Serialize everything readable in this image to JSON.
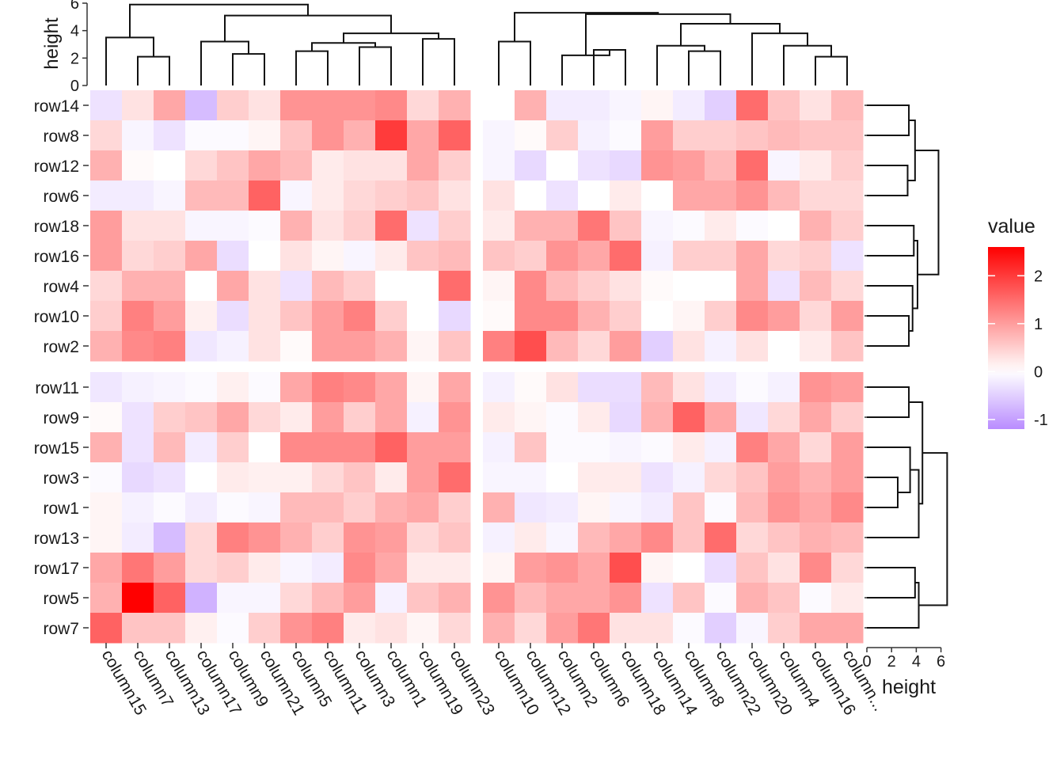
{
  "chart_data": {
    "type": "heatmap",
    "title": "",
    "value_range": [
      -1.2,
      2.6
    ],
    "colors": {
      "low": "#B98CFF",
      "mid": "#FFFFFF",
      "high": "#FF0000"
    },
    "row_groups": [
      [
        "row14",
        "row8",
        "row12",
        "row6",
        "row18",
        "row16",
        "row4",
        "row10",
        "row2"
      ],
      [
        "row11",
        "row9",
        "row15",
        "row3",
        "row1",
        "row13",
        "row17",
        "row5",
        "row7"
      ]
    ],
    "column_groups": [
      [
        "column15",
        "column7",
        "column13",
        "column17",
        "column9",
        "column21",
        "column5",
        "column11",
        "column3",
        "column1",
        "column19",
        "column23"
      ],
      [
        "column10",
        "column12",
        "column2",
        "column6",
        "column18",
        "column14",
        "column8",
        "column22",
        "column20",
        "column4",
        "column16",
        "column..."
      ]
    ],
    "values": {
      "row14": [
        -0.3,
        0.3,
        0.9,
        -0.7,
        0.5,
        0.3,
        1.1,
        1.1,
        1.1,
        1.2,
        0.4,
        0.8,
        0.0,
        0.8,
        -0.2,
        -0.2,
        -0.1,
        0.1,
        -0.2,
        -0.5,
        1.5,
        0.6,
        0.3,
        0.7
      ],
      "row8": [
        0.4,
        -0.1,
        -0.3,
        -0.05,
        -0.05,
        0.1,
        0.6,
        1.1,
        0.8,
        2.0,
        0.9,
        1.6,
        -0.1,
        0.05,
        0.5,
        -0.15,
        -0.05,
        1.0,
        0.5,
        0.5,
        0.6,
        0.7,
        0.6,
        0.6
      ],
      "row12": [
        0.8,
        0.05,
        0.0,
        0.4,
        0.6,
        0.9,
        0.7,
        0.2,
        0.3,
        0.3,
        0.9,
        0.5,
        -0.1,
        -0.4,
        0.0,
        -0.3,
        -0.4,
        1.1,
        1.0,
        0.7,
        1.5,
        -0.1,
        0.2,
        0.5
      ],
      "row6": [
        -0.2,
        -0.2,
        -0.1,
        0.7,
        0.7,
        1.6,
        -0.1,
        0.2,
        0.4,
        0.5,
        0.6,
        0.3,
        0.3,
        0.0,
        -0.3,
        0.0,
        0.2,
        0.0,
        0.9,
        0.9,
        1.1,
        0.7,
        0.4,
        0.4
      ],
      "row18": [
        1.0,
        0.3,
        0.3,
        -0.1,
        -0.1,
        -0.05,
        0.8,
        0.3,
        0.5,
        1.5,
        -0.3,
        0.5,
        0.2,
        0.8,
        0.8,
        1.4,
        0.6,
        -0.1,
        -0.05,
        0.2,
        -0.05,
        0.0,
        0.8,
        0.5
      ],
      "row16": [
        1.0,
        0.4,
        0.5,
        0.9,
        -0.35,
        0.0,
        0.3,
        0.1,
        -0.1,
        0.2,
        0.6,
        0.7,
        0.6,
        0.5,
        1.1,
        0.9,
        1.5,
        -0.15,
        0.5,
        0.5,
        0.9,
        0.4,
        0.5,
        -0.3
      ],
      "row4": [
        0.4,
        0.8,
        0.8,
        0.0,
        0.9,
        0.3,
        -0.3,
        0.7,
        0.5,
        0.0,
        0.0,
        1.5,
        0.1,
        1.2,
        0.7,
        0.5,
        0.3,
        0.05,
        0.0,
        0.0,
        0.9,
        -0.3,
        0.7,
        0.4
      ],
      "row10": [
        0.5,
        1.3,
        1.0,
        0.15,
        -0.35,
        0.3,
        0.6,
        1.0,
        1.3,
        0.5,
        0.0,
        -0.4,
        0.05,
        1.2,
        1.2,
        0.8,
        0.5,
        0.0,
        0.1,
        0.5,
        1.2,
        1.0,
        0.4,
        1.0
      ],
      "row2": [
        0.8,
        1.2,
        1.3,
        -0.25,
        -0.15,
        0.3,
        0.05,
        1.0,
        1.0,
        0.8,
        0.1,
        0.6,
        1.3,
        1.8,
        0.7,
        0.4,
        1.0,
        -0.5,
        0.3,
        -0.15,
        0.3,
        0.0,
        0.2,
        0.6
      ],
      "row11": [
        -0.25,
        -0.15,
        -0.1,
        -0.05,
        0.15,
        -0.05,
        0.9,
        1.3,
        1.2,
        0.9,
        0.1,
        0.9,
        -0.15,
        0.05,
        0.3,
        -0.35,
        -0.35,
        0.7,
        0.3,
        -0.2,
        -0.05,
        -0.15,
        1.1,
        1.0
      ],
      "row9": [
        0.05,
        -0.3,
        0.5,
        0.6,
        0.9,
        0.4,
        0.2,
        1.0,
        0.5,
        0.9,
        -0.15,
        1.1,
        0.2,
        0.1,
        -0.05,
        0.2,
        -0.4,
        0.8,
        1.6,
        0.9,
        -0.25,
        0.4,
        0.9,
        0.5
      ],
      "row15": [
        0.8,
        -0.3,
        0.7,
        -0.2,
        0.5,
        0.0,
        1.2,
        1.2,
        1.2,
        1.6,
        1.0,
        1.0,
        -0.15,
        0.6,
        -0.05,
        -0.05,
        -0.1,
        -0.05,
        0.2,
        -0.15,
        1.3,
        0.9,
        0.4,
        1.0
      ],
      "row3": [
        -0.05,
        -0.4,
        -0.3,
        0.0,
        0.2,
        0.15,
        0.15,
        0.4,
        0.6,
        0.2,
        1.0,
        1.5,
        -0.1,
        -0.1,
        0.0,
        0.2,
        0.2,
        -0.3,
        -0.15,
        0.4,
        0.6,
        1.0,
        0.8,
        1.0
      ],
      "row1": [
        0.1,
        -0.15,
        -0.05,
        -0.2,
        -0.05,
        -0.1,
        0.7,
        0.7,
        0.5,
        0.8,
        0.9,
        0.5,
        0.8,
        -0.25,
        -0.2,
        0.1,
        -0.1,
        -0.2,
        0.6,
        -0.05,
        0.7,
        1.1,
        0.9,
        1.2
      ],
      "row13": [
        0.1,
        -0.2,
        -0.7,
        0.4,
        1.3,
        1.1,
        0.8,
        0.5,
        1.1,
        1.0,
        0.4,
        0.6,
        -0.15,
        0.2,
        -0.1,
        0.7,
        0.9,
        1.2,
        0.6,
        1.5,
        0.4,
        0.6,
        0.8,
        0.7
      ],
      "row17": [
        0.9,
        1.4,
        1.0,
        0.4,
        0.5,
        0.2,
        -0.1,
        -0.2,
        1.2,
        0.9,
        0.2,
        0.2,
        0.1,
        1.0,
        1.1,
        0.9,
        1.8,
        0.1,
        0.0,
        -0.35,
        0.6,
        0.3,
        1.2,
        0.4
      ],
      "row5": [
        0.8,
        2.6,
        1.6,
        -0.8,
        -0.1,
        -0.1,
        0.4,
        0.7,
        1.0,
        -0.15,
        0.6,
        0.8,
        1.1,
        0.7,
        0.9,
        0.9,
        1.1,
        -0.3,
        0.6,
        -0.05,
        0.8,
        0.6,
        -0.05,
        0.2
      ],
      "row7": [
        1.6,
        0.6,
        0.6,
        0.15,
        -0.05,
        0.5,
        1.1,
        1.3,
        0.2,
        0.3,
        0.1,
        0.4,
        0.8,
        0.4,
        1.0,
        1.4,
        0.3,
        0.3,
        -0.05,
        -0.5,
        -0.1,
        0.5,
        0.9,
        0.9
      ]
    },
    "top_dendrogram": {
      "axis_label": "height",
      "ticks": [
        0,
        2,
        4,
        6
      ]
    },
    "right_dendrogram": {
      "axis_label": "height",
      "ticks": [
        0,
        2,
        4,
        6
      ]
    },
    "legend": {
      "title": "value",
      "ticks": [
        2,
        1,
        0,
        -1
      ],
      "position": "right"
    }
  }
}
